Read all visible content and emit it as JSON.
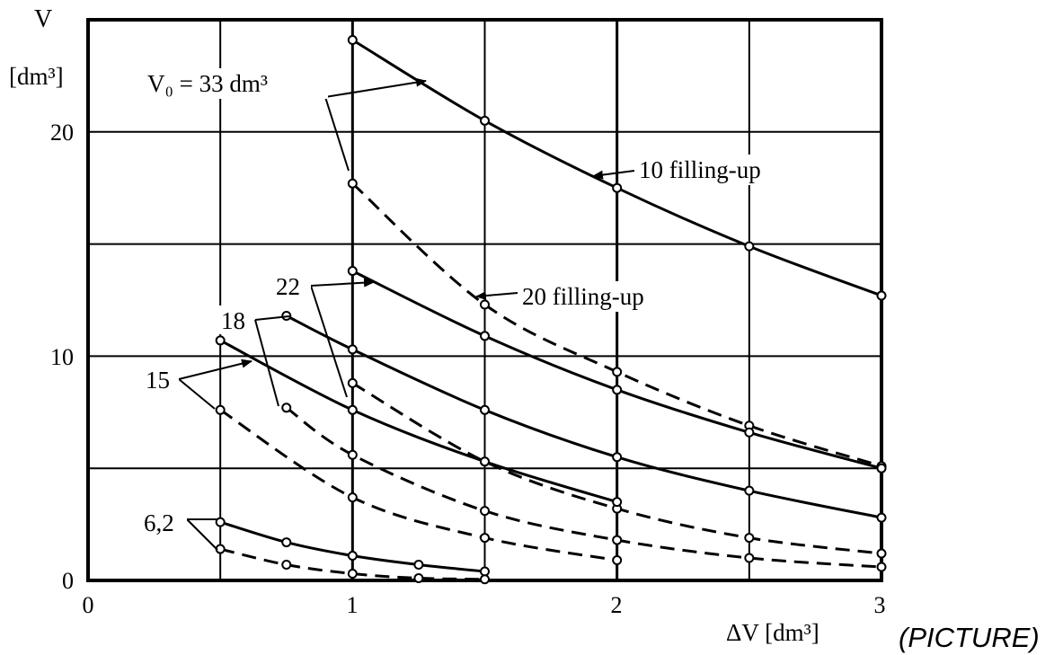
{
  "chart_data": {
    "type": "line",
    "y_title": "V",
    "y_unit": "[dm³]",
    "x_label": "ΔV [dm³]",
    "x_ticks": [
      "0",
      "1",
      "2",
      "3"
    ],
    "y_ticks": [
      "0",
      "10",
      "20"
    ],
    "xlim": [
      0,
      3
    ],
    "ylim": [
      0,
      25
    ],
    "grid": true,
    "picture_label": "(PICTURE)",
    "curve_labels": {
      "v0": "V₀ = 33 dm³",
      "c22": "22",
      "c18": "18",
      "c15": "15",
      "c62": "6,2",
      "ten_fill": "10 filling-up",
      "twenty_fill": "20 filling-up"
    },
    "series": [
      {
        "group": "33",
        "style": "solid",
        "x": [
          1.0,
          1.5,
          2.0,
          2.5,
          3.0
        ],
        "y": [
          24.1,
          20.5,
          17.5,
          14.9,
          12.7
        ]
      },
      {
        "group": "33",
        "style": "dashed",
        "x": [
          1.0,
          1.5,
          2.0,
          2.5,
          3.0
        ],
        "y": [
          17.7,
          12.3,
          9.3,
          6.9,
          5.1
        ]
      },
      {
        "group": "22",
        "style": "solid",
        "x": [
          1.0,
          1.5,
          2.0,
          2.5,
          3.0
        ],
        "y": [
          13.8,
          10.9,
          8.5,
          6.6,
          5.0
        ]
      },
      {
        "group": "22",
        "style": "dashed",
        "x": [
          1.0,
          1.5,
          2.0,
          2.5,
          3.0
        ],
        "y": [
          8.8,
          5.3,
          3.2,
          1.9,
          1.2
        ]
      },
      {
        "group": "18",
        "style": "solid",
        "x": [
          0.75,
          1.0,
          1.5,
          2.0,
          2.5,
          3.0
        ],
        "y": [
          11.8,
          10.3,
          7.6,
          5.5,
          4.0,
          2.8
        ]
      },
      {
        "group": "18",
        "style": "dashed",
        "x": [
          0.75,
          1.0,
          1.5,
          2.0,
          2.5,
          3.0
        ],
        "y": [
          7.7,
          5.6,
          3.1,
          1.8,
          1.0,
          0.6
        ]
      },
      {
        "group": "15",
        "style": "solid",
        "x": [
          0.5,
          1.0,
          1.5,
          2.0
        ],
        "y": [
          10.7,
          7.6,
          5.3,
          3.5
        ]
      },
      {
        "group": "15",
        "style": "dashed",
        "x": [
          0.5,
          1.0,
          1.5,
          2.0
        ],
        "y": [
          7.6,
          3.7,
          1.9,
          0.9
        ]
      },
      {
        "group": "6,2",
        "style": "solid",
        "x": [
          0.5,
          0.75,
          1.0,
          1.25,
          1.5
        ],
        "y": [
          2.6,
          1.7,
          1.1,
          0.7,
          0.4
        ]
      },
      {
        "group": "6,2",
        "style": "dashed",
        "x": [
          0.5,
          0.75,
          1.0,
          1.25,
          1.5
        ],
        "y": [
          1.4,
          0.7,
          0.3,
          0.1,
          0.05
        ]
      }
    ]
  }
}
